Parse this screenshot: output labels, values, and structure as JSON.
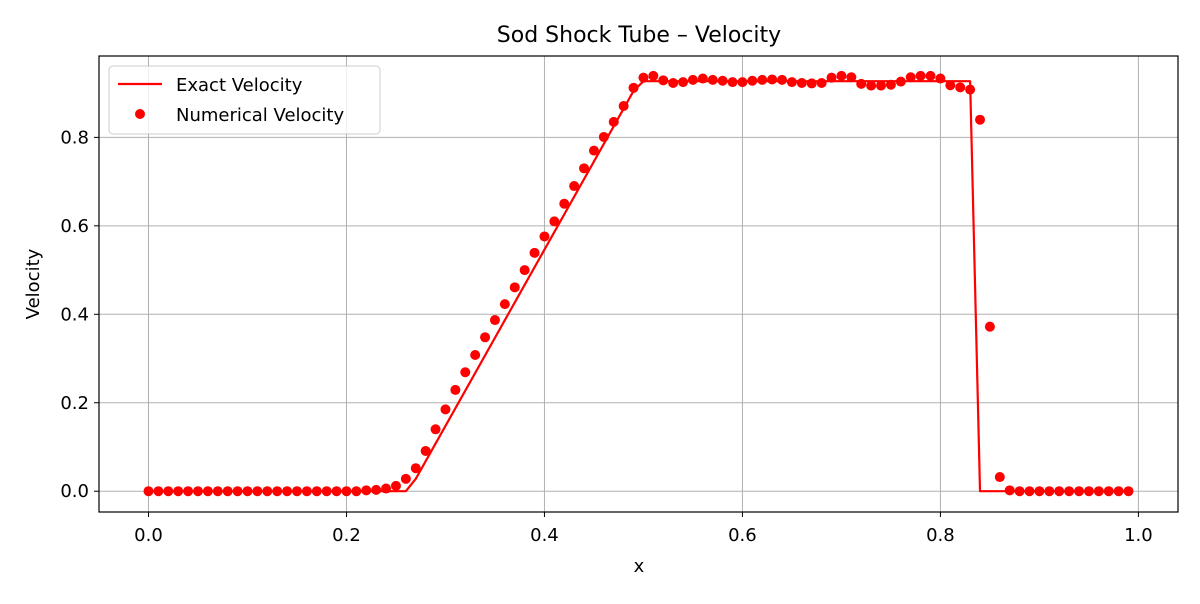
{
  "chart_data": {
    "type": "line",
    "title": "Sod Shock Tube – Velocity",
    "xlabel": "x",
    "ylabel": "Velocity",
    "xlim": [
      -0.05,
      1.04
    ],
    "ylim": [
      -0.047,
      0.984
    ],
    "xticks": [
      0.0,
      0.2,
      0.4,
      0.6,
      0.8,
      1.0
    ],
    "xtick_labels": [
      "0.0",
      "0.2",
      "0.4",
      "0.6",
      "0.8",
      "1.0"
    ],
    "yticks": [
      0.0,
      0.2,
      0.4,
      0.6,
      0.8
    ],
    "ytick_labels": [
      "0.0",
      "0.2",
      "0.4",
      "0.6",
      "0.8"
    ],
    "grid": true,
    "legend_position": "top-left",
    "legend": [
      "Exact Velocity",
      "Numerical Velocity"
    ],
    "series": [
      {
        "name": "Exact Velocity",
        "style": "line",
        "color": "#ff0000",
        "x": [
          0.0,
          0.26,
          0.27,
          0.49,
          0.5,
          0.83,
          0.84,
          0.99
        ],
        "y": [
          0.0,
          0.0,
          0.028,
          0.905,
          0.927,
          0.927,
          0.0,
          0.0
        ]
      },
      {
        "name": "Numerical Velocity",
        "style": "scatter",
        "color": "#ff0000",
        "x": [
          0.0,
          0.01,
          0.02,
          0.03,
          0.04,
          0.05,
          0.06,
          0.07,
          0.08,
          0.09,
          0.1,
          0.11,
          0.12,
          0.13,
          0.14,
          0.15,
          0.16,
          0.17,
          0.18,
          0.19,
          0.2,
          0.21,
          0.22,
          0.23,
          0.24,
          0.25,
          0.26,
          0.27,
          0.28,
          0.29,
          0.3,
          0.31,
          0.32,
          0.33,
          0.34,
          0.35,
          0.36,
          0.37,
          0.38,
          0.39,
          0.4,
          0.41,
          0.42,
          0.43,
          0.44,
          0.45,
          0.46,
          0.47,
          0.48,
          0.49,
          0.5,
          0.51,
          0.52,
          0.53,
          0.54,
          0.55,
          0.56,
          0.57,
          0.58,
          0.59,
          0.6,
          0.61,
          0.62,
          0.63,
          0.64,
          0.65,
          0.66,
          0.67,
          0.68,
          0.69,
          0.7,
          0.71,
          0.72,
          0.73,
          0.74,
          0.75,
          0.76,
          0.77,
          0.78,
          0.79,
          0.8,
          0.81,
          0.82,
          0.83,
          0.84,
          0.85,
          0.86,
          0.87,
          0.88,
          0.89,
          0.9,
          0.91,
          0.92,
          0.93,
          0.94,
          0.95,
          0.96,
          0.97,
          0.98,
          0.99
        ],
        "y": [
          0.0,
          0.0,
          0.0,
          0.0,
          0.0,
          0.0,
          0.0,
          0.0,
          0.0,
          0.0,
          0.0,
          0.0,
          0.0,
          0.0,
          0.0,
          0.0,
          0.0,
          0.0,
          0.0,
          0.0,
          0.0,
          0.0,
          0.002,
          0.003,
          0.006,
          0.012,
          0.028,
          0.052,
          0.091,
          0.14,
          0.185,
          0.229,
          0.269,
          0.308,
          0.348,
          0.387,
          0.423,
          0.461,
          0.5,
          0.539,
          0.576,
          0.61,
          0.65,
          0.69,
          0.73,
          0.77,
          0.801,
          0.835,
          0.871,
          0.912,
          0.935,
          0.939,
          0.929,
          0.923,
          0.925,
          0.93,
          0.933,
          0.93,
          0.928,
          0.925,
          0.925,
          0.928,
          0.93,
          0.931,
          0.93,
          0.925,
          0.923,
          0.922,
          0.923,
          0.935,
          0.939,
          0.936,
          0.921,
          0.917,
          0.917,
          0.919,
          0.926,
          0.936,
          0.939,
          0.939,
          0.933,
          0.918,
          0.913,
          0.908,
          0.84,
          0.372,
          0.032,
          0.002,
          0.0,
          0.0,
          0.0,
          0.0,
          0.0,
          0.0,
          0.0,
          0.0,
          0.0,
          0.0,
          0.0,
          0.0
        ]
      }
    ]
  }
}
